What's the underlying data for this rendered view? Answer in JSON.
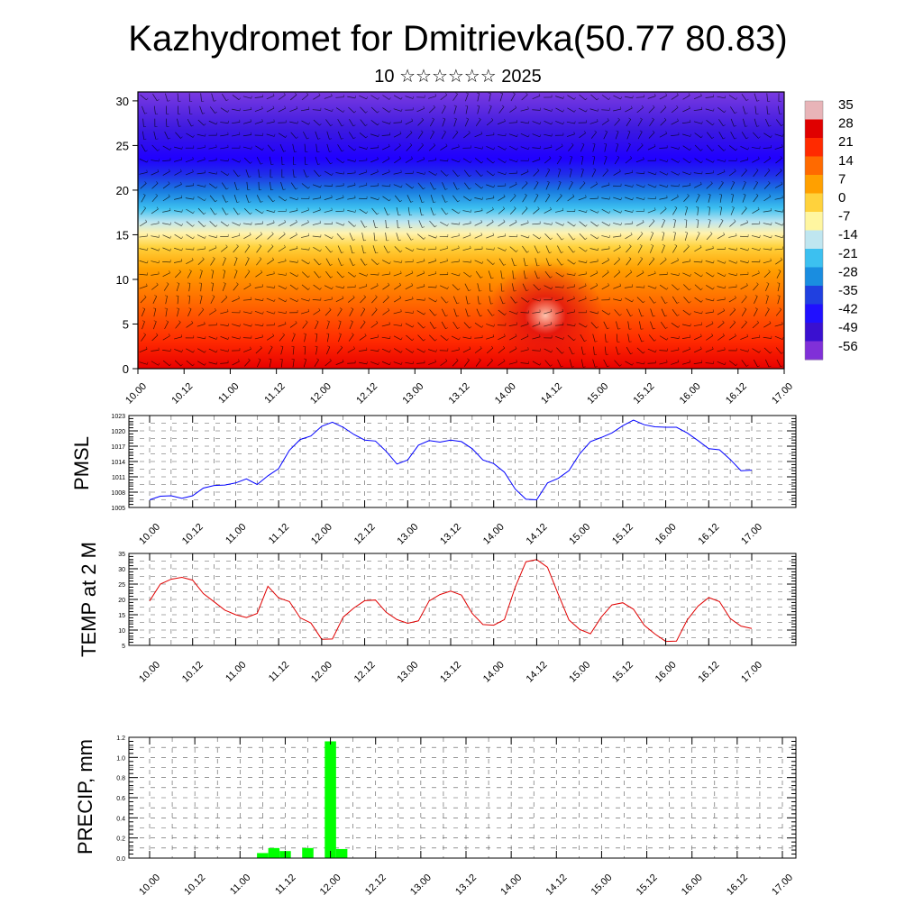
{
  "title": "Kazhydromet for Dmitrievka(50.77 80.83)",
  "subtitle": "10 ☆☆☆☆☆☆ 2025",
  "time_ticks": [
    "10.00",
    "10.12",
    "11.00",
    "11.12",
    "12.00",
    "12.12",
    "13.00",
    "13.12",
    "14.00",
    "14.12",
    "15.00",
    "15.12",
    "16.00",
    "16.12",
    "17.00"
  ],
  "colorbar": {
    "labels": [
      "35",
      "28",
      "21",
      "14",
      "7",
      "0",
      "-7",
      "-14",
      "-21",
      "-28",
      "-35",
      "-42",
      "-49",
      "-56"
    ],
    "colors": [
      "#e8b4b8",
      "#e00000",
      "#ff2a00",
      "#ff6a00",
      "#ffa000",
      "#ffd23c",
      "#fff6a0",
      "#bfe6f0",
      "#3cc0f0",
      "#1a8de0",
      "#2040e0",
      "#2010ff",
      "#3a10d0",
      "#8030d8"
    ]
  },
  "chart_data": [
    {
      "type": "heatmap",
      "title": "",
      "xlabel": "",
      "ylabel": "",
      "x_ticks": [
        "10.00",
        "10.12",
        "11.00",
        "11.12",
        "12.00",
        "12.12",
        "13.00",
        "13.12",
        "14.00",
        "14.12",
        "15.00",
        "15.12",
        "16.00",
        "16.12",
        "17.00"
      ],
      "y_ticks": [
        0,
        5,
        10,
        15,
        20,
        25,
        30
      ],
      "ylim": [
        0,
        31
      ],
      "legend": "colorbar-right",
      "color_scale": [
        "35",
        "28",
        "21",
        "14",
        "7",
        "0",
        "-7",
        "-14",
        "-21",
        "-28",
        "-35",
        "-42",
        "-49",
        "-56"
      ],
      "overlay": "wind vectors"
    },
    {
      "type": "line",
      "ylabel": "PMSL",
      "color": "#0000ff",
      "ylim": [
        1005,
        1023
      ],
      "y_ticks": [
        1005,
        1008,
        1011,
        1014,
        1017,
        1020,
        1023
      ],
      "x_ticks": [
        "10.00",
        "10.12",
        "11.00",
        "11.12",
        "12.00",
        "12.12",
        "13.00",
        "13.12",
        "14.00",
        "14.12",
        "15.00",
        "15.12",
        "16.00",
        "16.12",
        "17.00"
      ],
      "values": [
        1006.5,
        1007.2,
        1007.3,
        1006.8,
        1007.3,
        1008.8,
        1009.3,
        1009.4,
        1009.8,
        1010.6,
        1009.5,
        1011.2,
        1012.6,
        1016.2,
        1018.3,
        1019.0,
        1020.9,
        1021.7,
        1020.7,
        1019.3,
        1018.2,
        1018.0,
        1016.0,
        1013.5,
        1014.3,
        1017.2,
        1018.1,
        1017.8,
        1018.2,
        1017.9,
        1016.5,
        1014.3,
        1013.6,
        1011.9,
        1008.6,
        1006.6,
        1006.5,
        1009.8,
        1010.7,
        1012.2,
        1015.5,
        1017.9,
        1018.7,
        1019.6,
        1021.0,
        1022.1,
        1021.2,
        1020.8,
        1020.7,
        1020.7,
        1019.6,
        1018.1,
        1016.5,
        1016.3,
        1014.4,
        1012.2,
        1012.3
      ]
    },
    {
      "type": "line",
      "ylabel": "TEMP at 2 M",
      "color": "#e00000",
      "ylim": [
        5,
        35
      ],
      "y_ticks": [
        5,
        10,
        15,
        20,
        25,
        30,
        35
      ],
      "x_ticks": [
        "10.00",
        "10.12",
        "11.00",
        "11.12",
        "12.00",
        "12.12",
        "13.00",
        "13.12",
        "14.00",
        "14.12",
        "15.00",
        "15.12",
        "16.00",
        "16.12",
        "17.00"
      ],
      "values": [
        19.5,
        25.0,
        26.6,
        27.2,
        26.3,
        21.9,
        19.2,
        16.5,
        15.0,
        14.1,
        15.4,
        24.3,
        20.5,
        19.3,
        14.0,
        12.3,
        7.0,
        7.1,
        14.2,
        17.2,
        19.6,
        19.8,
        15.8,
        13.4,
        12.2,
        13.0,
        19.5,
        21.6,
        22.7,
        21.4,
        15.4,
        11.8,
        11.6,
        13.4,
        24.0,
        32.3,
        33.0,
        30.5,
        21.7,
        13.3,
        10.2,
        8.8,
        14.2,
        18.2,
        18.9,
        16.8,
        11.6,
        8.7,
        6.3,
        6.4,
        13.3,
        17.8,
        20.6,
        19.3,
        13.8,
        11.3,
        10.5
      ]
    },
    {
      "type": "bar",
      "ylabel": "PRECIP, mm",
      "color": "#00ff00",
      "ylim": [
        0,
        1.2
      ],
      "y_ticks": [
        "0.0",
        "0.2",
        "0.4",
        "0.6",
        "0.8",
        "1.0",
        "1.2"
      ],
      "x_ticks": [
        "10.00",
        "10.12",
        "11.00",
        "11.12",
        "12.00",
        "12.12",
        "13.00",
        "13.12",
        "14.00",
        "14.12",
        "15.00",
        "15.12",
        "16.00",
        "16.12",
        "17.00"
      ],
      "bars": [
        {
          "x_hours": 30,
          "value": 0.05
        },
        {
          "x_hours": 33,
          "value": 0.1
        },
        {
          "x_hours": 36,
          "value": 0.07
        },
        {
          "x_hours": 42,
          "value": 0.1
        },
        {
          "x_hours": 48,
          "value": 1.16
        },
        {
          "x_hours": 51,
          "value": 0.09
        }
      ]
    }
  ]
}
